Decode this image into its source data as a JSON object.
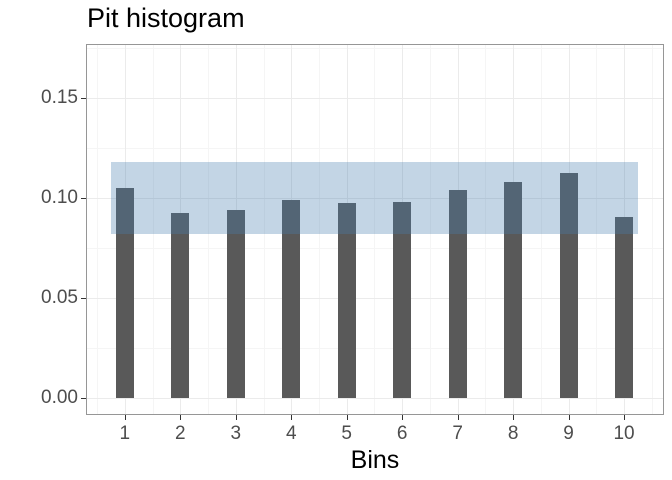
{
  "title": "Pit histogram",
  "colors": {
    "bar": "#595959",
    "band": "rgba(73,126,176,0.33)",
    "grid_major": "#ebebeb",
    "grid_minor": "#f5f5f5",
    "panel_border": "#969696",
    "tick": "#333333",
    "tick_label": "#4d4d4d",
    "text": "#000000",
    "background": "#ffffff"
  },
  "chart_data": {
    "type": "bar",
    "title": "Pit histogram",
    "xlabel": "Bins",
    "ylabel": "",
    "categories": [
      1,
      2,
      3,
      4,
      5,
      6,
      7,
      8,
      9,
      10
    ],
    "values": [
      0.105,
      0.0925,
      0.094,
      0.099,
      0.0975,
      0.098,
      0.104,
      0.108,
      0.1125,
      0.0905
    ],
    "band": {
      "ymin": 0.082,
      "ymax": 0.118,
      "xmin": 0.75,
      "xmax": 10.25
    },
    "bar_width_bins": 0.325,
    "y_ticks": [
      {
        "value": 0.0,
        "label": "0.00"
      },
      {
        "value": 0.05,
        "label": "0.05"
      },
      {
        "value": 0.1,
        "label": "0.10"
      },
      {
        "value": 0.15,
        "label": "0.15"
      }
    ],
    "y_minor_gridlines": [
      0.025,
      0.075,
      0.125,
      0.175
    ],
    "x_minor_gridlines": [
      0.5,
      1.5,
      2.5,
      3.5,
      4.5,
      5.5,
      6.5,
      7.5,
      8.5,
      9.5,
      10.5
    ],
    "ylim": [
      -0.008,
      0.177
    ],
    "xlim": [
      0.3,
      10.72
    ],
    "grid": true,
    "legend": "none"
  }
}
